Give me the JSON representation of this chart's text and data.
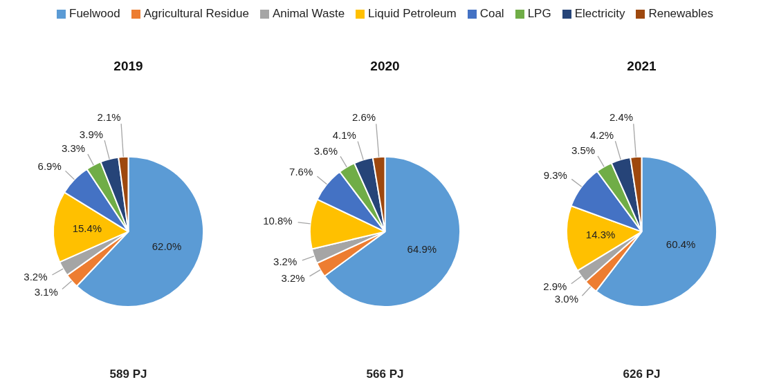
{
  "chart_data": [
    {
      "type": "pie",
      "title": "2019",
      "categories": [
        "Fuelwood",
        "Agricultural Residue",
        "Animal Waste",
        "Liquid Petroleum",
        "Coal",
        "LPG",
        "Electricity",
        "Renewables"
      ],
      "values": [
        62.0,
        3.1,
        3.2,
        15.4,
        6.9,
        3.3,
        3.9,
        2.1
      ],
      "value_labels": [
        "62.0%",
        "3.1%",
        "3.2%",
        "15.4%",
        "6.9%",
        "3.3%",
        "3.9%",
        "2.1%"
      ],
      "colors": [
        "#5b9bd5",
        "#ed7d31",
        "#a5a5a5",
        "#ffc000",
        "#4472c4",
        "#70ad47",
        "#264478",
        "#9e480e"
      ],
      "legend": "top",
      "annotations": [
        "589 PJ"
      ]
    },
    {
      "type": "pie",
      "title": "2020",
      "categories": [
        null,
        null,
        null,
        null,
        null,
        null,
        null,
        null
      ],
      "values": [
        64.9,
        3.2,
        3.2,
        10.8,
        7.6,
        3.6,
        4.1,
        2.6
      ],
      "value_labels": [
        "64.9%",
        "3.2%",
        "3.2%",
        "10.8%",
        "7.6%",
        "3.6%",
        "4.1%",
        "2.6%"
      ],
      "colors": [
        "#5b9bd5",
        "#ed7d31",
        "#a5a5a5",
        "#ffc000",
        "#4472c4",
        "#70ad47",
        "#264478",
        "#9e480e"
      ],
      "annotations": [
        "566 PJ"
      ]
    },
    {
      "type": "pie",
      "title": "2021",
      "categories": [
        null,
        null,
        null,
        null,
        null,
        null,
        null,
        null
      ],
      "values": [
        60.4,
        3.0,
        2.9,
        14.3,
        9.3,
        3.5,
        4.2,
        2.4
      ],
      "value_labels": [
        "60.4%",
        "3.0%",
        "2.9%",
        "14.3%",
        "9.3%",
        "3.5%",
        "4.2%",
        "2.4%"
      ],
      "colors": [
        "#5b9bd5",
        "#ed7d31",
        "#a5a5a5",
        "#ffc000",
        "#4472c4",
        "#70ad47",
        "#264478",
        "#9e480e"
      ],
      "annotations": [
        "626 PJ"
      ]
    }
  ]
}
